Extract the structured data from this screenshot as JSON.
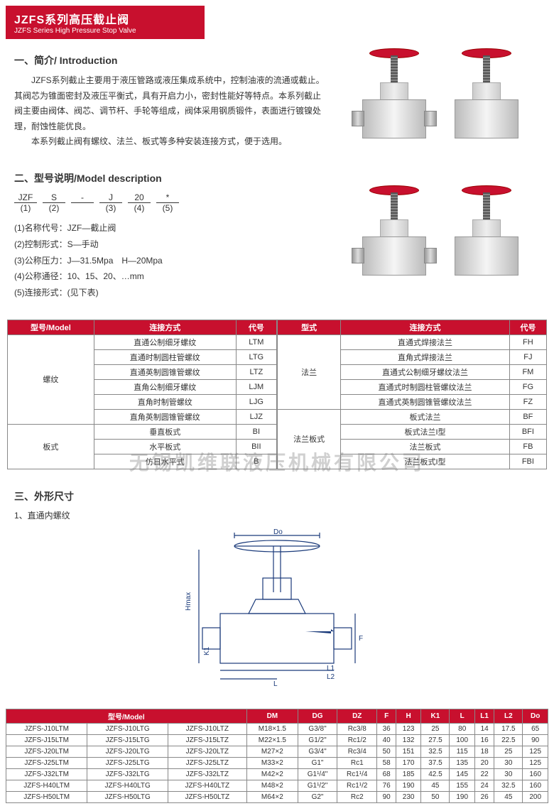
{
  "banner": {
    "cn": "JZFS系列高压截止阀",
    "en": "JZFS Series High Pressure Stop Valve"
  },
  "intro": {
    "heading": "一、简介/ Introduction",
    "p1": "JZFS系列截止主要用于液压管路或液压集成系统中，控制油液的流通或截止。其阀芯为锥面密封及液压平衡式，具有开启力小，密封性能好等特点。本系列截止阀主要由阀体、阀芯、调节杆、手轮等组成，阀体采用钢质锻件，表面进行镀镍处理，耐蚀性能优良。",
    "p2": "本系列截止阀有螺纹、法兰、板式等多种安装连接方式，便于选用。"
  },
  "model": {
    "heading": "二、型号说明/Model description",
    "codes_top": [
      "JZF",
      "S",
      "-",
      "J",
      "20",
      "*"
    ],
    "codes_bot": [
      "(1)",
      "(2)",
      "",
      "(3)",
      "(4)",
      "(5)"
    ],
    "items": [
      "(1)名称代号：JZF—截止阀",
      "(2)控制形式：S—手动",
      "(3)公称压力：J—31.5Mpa　H—20Mpa",
      "(4)公称通径：10、15、20、…mm",
      "(5)连接形式：(见下表)"
    ]
  },
  "conn_table_left": {
    "headers": [
      "型号/Model",
      "连接方式",
      "代号"
    ],
    "groups": [
      {
        "label": "螺纹",
        "rows": [
          [
            "直通公制细牙螺纹",
            "LTM"
          ],
          [
            "直通时制圆柱管螺纹",
            "LTG"
          ],
          [
            "直通英制圆锥管螺纹",
            "LTZ"
          ],
          [
            "直角公制细牙螺纹",
            "LJM"
          ],
          [
            "直角时制管螺纹",
            "LJG"
          ],
          [
            "直角英制圆锥管螺纹",
            "LJZ"
          ]
        ]
      },
      {
        "label": "板式",
        "rows": [
          [
            "垂直板式",
            "BI"
          ],
          [
            "水平板式",
            "BII"
          ],
          [
            "仿日水平式",
            "B"
          ]
        ]
      }
    ]
  },
  "conn_table_right": {
    "headers": [
      "型式",
      "连接方式",
      "代号"
    ],
    "groups": [
      {
        "label": "法兰",
        "rows": [
          [
            "直通式焊接法兰",
            "FH"
          ],
          [
            "直角式焊接法兰",
            "FJ"
          ],
          [
            "直通式公制细牙螺纹法兰",
            "FM"
          ],
          [
            "直通式时制圆柱管螺纹法兰",
            "FG"
          ],
          [
            "直通式英制圆锥管螺纹法兰",
            "FZ"
          ]
        ]
      },
      {
        "label": "法兰板式",
        "rows": [
          [
            "板式法兰",
            "BF"
          ],
          [
            "板式法兰I型",
            "BFI"
          ],
          [
            "法兰板式",
            "FB"
          ],
          [
            "法兰板式I型",
            "FBI"
          ]
        ]
      }
    ]
  },
  "dim": {
    "heading": "三、外形尺寸",
    "sub": "1、直通内螺纹"
  },
  "diagram_labels": {
    "Do": "Do",
    "Hmax": "Hmax",
    "F": "F",
    "K1": "K1",
    "L": "L",
    "L1": "L1",
    "L2": "L2"
  },
  "dim_table": {
    "headers": [
      "",
      "型号/Model",
      "",
      "DM",
      "DG",
      "DZ",
      "F",
      "H",
      "K1",
      "L",
      "L1",
      "L2",
      "Do"
    ],
    "rows": [
      [
        "JZFS-J10LTM",
        "JZFS-J10LTG",
        "JZFS-J10LTZ",
        "M18×1.5",
        "G3/8\"",
        "Rc3/8",
        "36",
        "123",
        "25",
        "80",
        "14",
        "17.5",
        "65"
      ],
      [
        "JZFS-J15LTM",
        "JZFS-J15LTG",
        "JZFS-J15LTZ",
        "M22×1.5",
        "G1/2\"",
        "Rc1/2",
        "40",
        "132",
        "27.5",
        "100",
        "16",
        "22.5",
        "90"
      ],
      [
        "JZFS-J20LTM",
        "JZFS-J20LTG",
        "JZFS-J20LTZ",
        "M27×2",
        "G3/4\"",
        "Rc3/4",
        "50",
        "151",
        "32.5",
        "115",
        "18",
        "25",
        "125"
      ],
      [
        "JZFS-J25LTM",
        "JZFS-J25LTG",
        "JZFS-J25LTZ",
        "M33×2",
        "G1\"",
        "Rc1",
        "58",
        "170",
        "37.5",
        "135",
        "20",
        "30",
        "125"
      ],
      [
        "JZFS-J32LTM",
        "JZFS-J32LTG",
        "JZFS-J32LTZ",
        "M42×2",
        "G1¹/4\"",
        "Rc1¹/4",
        "68",
        "185",
        "42.5",
        "145",
        "22",
        "30",
        "160"
      ],
      [
        "JZFS-H40LTM",
        "JZFS-H40LTG",
        "JZFS-H40LTZ",
        "M48×2",
        "G1¹/2\"",
        "Rc1¹/2",
        "76",
        "190",
        "45",
        "155",
        "24",
        "32.5",
        "160"
      ],
      [
        "JZFS-H50LTM",
        "JZFS-H50LTG",
        "JZFS-H50LTZ",
        "M64×2",
        "G2\"",
        "Rc2",
        "90",
        "230",
        "50",
        "190",
        "26",
        "45",
        "200"
      ]
    ]
  },
  "watermark": "无锡凯维联液压机械有限公司",
  "colors": {
    "brand": "#c8102e",
    "border": "#888888",
    "bg": "#ffffff"
  }
}
